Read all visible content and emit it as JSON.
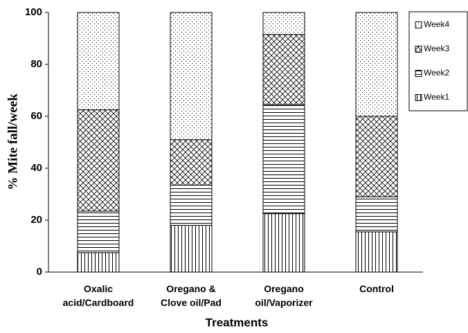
{
  "chart_data": {
    "type": "stacked_bar",
    "ylabel": "% Mite fall/week",
    "xlabel": "Treatments",
    "categories": [
      [
        "Oxalic",
        "acid/Cardboard"
      ],
      [
        "Oregano &",
        "Clove oil/Pad"
      ],
      [
        "Oregano",
        "oil/Vaporizer"
      ],
      [
        "Control"
      ]
    ],
    "series": [
      {
        "name": "Week1",
        "color": "#000000",
        "pattern": "vertical",
        "values": [
          7.5,
          18,
          22.5,
          15.5
        ]
      },
      {
        "name": "Week2",
        "color": "#000000",
        "pattern": "horizontal",
        "values": [
          16,
          15.5,
          42,
          13.5
        ]
      },
      {
        "name": "Week3",
        "color": "#000000",
        "pattern": "crosshatch",
        "values": [
          39,
          17.5,
          27,
          31
        ]
      },
      {
        "name": "Week4",
        "color": "#000000",
        "pattern": "dots",
        "values": [
          37.5,
          49,
          8.5,
          40
        ]
      }
    ],
    "ylim": [
      0,
      100
    ],
    "yticks": [
      0,
      20,
      40,
      60,
      80,
      100
    ],
    "legend": "right"
  }
}
